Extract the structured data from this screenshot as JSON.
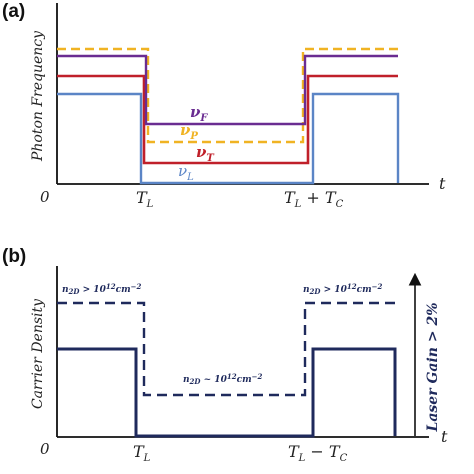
{
  "panel_a": {
    "label": "(a)",
    "ylabel": "Photon Frequency",
    "x_origin": "0",
    "x_axis_symbol": "t",
    "tick_1": {
      "main": "T",
      "sub": "L"
    },
    "tick_2": {
      "a": "T",
      "a_sub": "L",
      "op": " + ",
      "b": "T",
      "b_sub": "C"
    },
    "curves": [
      {
        "key": "F",
        "base": "ν",
        "sub": "F",
        "color": "#6a2c91"
      },
      {
        "key": "P",
        "base": "ν",
        "sub": "P",
        "color": "#f0b323"
      },
      {
        "key": "T",
        "base": "ν",
        "sub": "T",
        "color": "#c0202a"
      },
      {
        "key": "L",
        "base": "ν",
        "sub": "L",
        "color": "#5b85c6"
      }
    ]
  },
  "panel_b": {
    "label": "(b)",
    "ylabel": "Carrier Density",
    "x_origin": "0",
    "x_axis_symbol": "t",
    "tick_1": {
      "main": "T",
      "sub": "L"
    },
    "tick_2": {
      "a": "T",
      "a_sub": "L",
      "op": " − ",
      "b": "T",
      "b_sub": "C"
    },
    "right_label": "Laser Gain > 2%",
    "annotations": {
      "left": {
        "n": "n",
        "sub": "2D",
        "rel": " > 10",
        "exp": "12",
        "unit": "cm",
        "uexp": "−2"
      },
      "middle": {
        "n": "n",
        "sub": "2D",
        "rel": " ~ 10",
        "exp": "12",
        "unit": "cm",
        "uexp": "−2"
      },
      "right": {
        "n": "n",
        "sub": "2D",
        "rel": " > 10",
        "exp": "12",
        "unit": "cm",
        "uexp": "−2"
      }
    },
    "colors": {
      "line": "#1f2a5c"
    }
  }
}
